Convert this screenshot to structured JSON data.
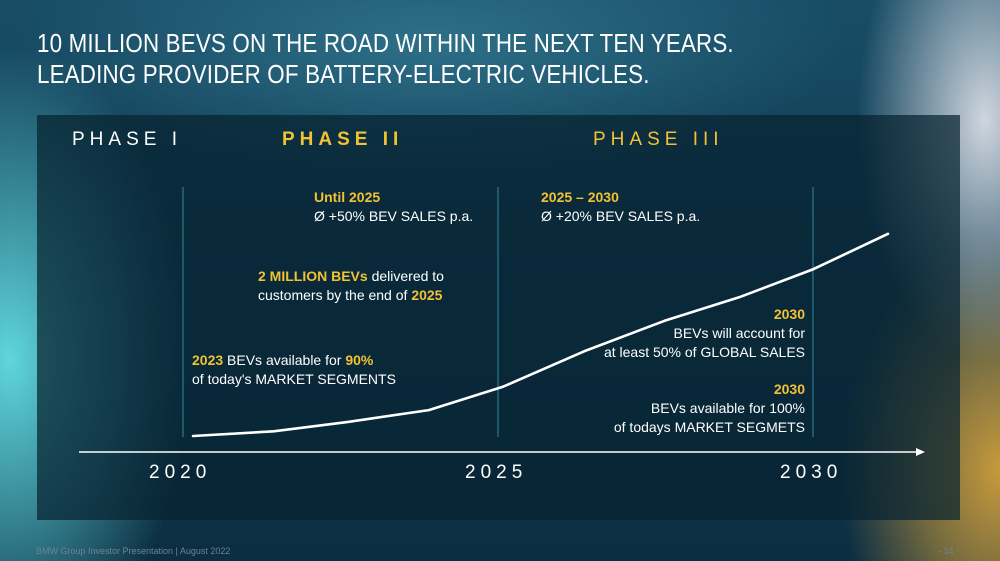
{
  "title": {
    "line1": "10 MILLION BEVS ON THE ROAD WITHIN THE NEXT TEN YEARS.",
    "line2": "LEADING PROVIDER OF BATTERY-ELECTRIC VEHICLES."
  },
  "phases": [
    "PHASE I",
    "PHASE II",
    "PHASE III"
  ],
  "annotations": {
    "until_2025": {
      "heading": "Until 2025",
      "text": "Ø +50% BEV SALES p.a."
    },
    "from_2025": {
      "heading": "2025 – 2030",
      "text": "Ø +20% BEV SALES p.a."
    },
    "two_million": {
      "bold": "2 MILLION BEVs",
      "rest": " delivered to",
      "line2_prefix": "customers by the end of ",
      "line2_year": "2025"
    },
    "bevs_2023": {
      "year": "2023",
      "mid": " BEVs available for ",
      "pct": "90%",
      "line2": "of today's MARKET SEGMENTS"
    },
    "global_2030": {
      "year": "2030",
      "line1": "BEVs will account for",
      "line2": "at least 50% of GLOBAL SALES"
    },
    "segments_2030": {
      "year": "2030",
      "line1": "BEVs available for 100%",
      "line2": "of todays MARKET SEGMETS"
    }
  },
  "chart_data": {
    "type": "line",
    "x_ticks": [
      "2020",
      "2025",
      "2030"
    ],
    "x_range": [
      2020,
      2031.2
    ],
    "y_range": [
      0,
      100
    ],
    "series": [
      {
        "x": [
          2020,
          2021.3,
          2022.5,
          2023.8,
          2025,
          2026.3,
          2027.6,
          2028.8,
          2030,
          2031.2
        ],
        "values": [
          0,
          2.7,
          8.1,
          14.9,
          28.4,
          48.6,
          66.2,
          79.7,
          95.9,
          116.2
        ]
      }
    ],
    "colors": {
      "line": "#ffffff",
      "phase_divider": "#2f8a9c",
      "axis": "#ffffff",
      "accent": "#f1c233"
    }
  },
  "footer": {
    "left": "BMW Group Investor Presentation | August 2022",
    "right": "- 14 -"
  }
}
